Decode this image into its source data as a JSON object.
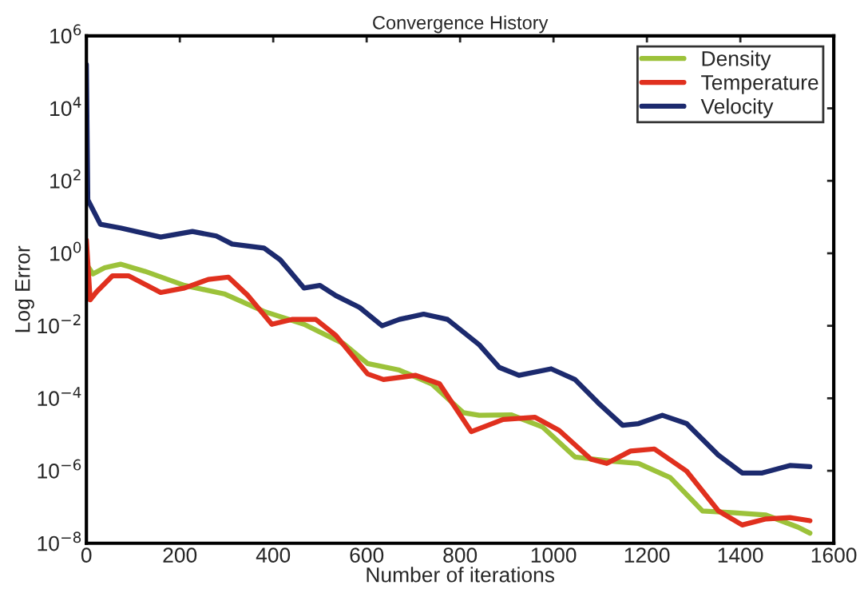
{
  "chart_data": {
    "type": "line",
    "title": "Convergence History",
    "xlabel": "Number of iterations",
    "ylabel": "Log Error",
    "xlim": [
      0,
      1600
    ],
    "xticks": [
      0,
      200,
      400,
      600,
      800,
      1000,
      1200,
      1400,
      1600
    ],
    "ylim": [
      1e-08,
      1000000.0
    ],
    "log": "y",
    "yticks": [
      {
        "value": 1e-08,
        "label": "10$^{−8}$"
      },
      {
        "value": 1e-06,
        "label": "10$^{−6}$"
      },
      {
        "value": 0.0001,
        "label": "10$^{−4}$"
      },
      {
        "value": 0.01,
        "label": "10$^{−2}$"
      },
      {
        "value": 1,
        "label": "10$^{0}$"
      },
      {
        "value": 100,
        "label": "10$^{2}$"
      },
      {
        "value": 10000,
        "label": "10$^{4}$"
      },
      {
        "value": 1000000,
        "label": "10$^{6}$"
      }
    ],
    "grid": false,
    "legend": "top right",
    "marker": "none",
    "line_style": "solid",
    "series": [
      {
        "name": "Density",
        "color": "#9cc23a",
        "x": [
          0,
          14,
          39,
          73,
          125,
          210,
          295,
          380,
          466,
          551,
          602,
          670,
          739,
          807,
          841,
          909,
          977,
          1046,
          1131,
          1182,
          1250,
          1319,
          1387,
          1455,
          1523,
          1549
        ],
        "values": [
          0.5,
          0.27,
          0.4,
          0.5,
          0.32,
          0.13,
          0.076,
          0.025,
          0.011,
          0.0032,
          0.00091,
          0.0006,
          0.00025,
          4e-05,
          3.4e-05,
          3.5e-05,
          1.6e-05,
          2.4e-06,
          1.8e-06,
          1.6e-06,
          6.5e-07,
          7.8e-08,
          6.9e-08,
          6e-08,
          2.8e-08,
          1.9e-08
        ]
      },
      {
        "name": "Temperature",
        "color": "#e0301e",
        "x": [
          0,
          8,
          22,
          56,
          90,
          159,
          210,
          261,
          304,
          346,
          397,
          440,
          491,
          534,
          602,
          636,
          705,
          756,
          824,
          892,
          960,
          1012,
          1080,
          1114,
          1165,
          1216,
          1285,
          1353,
          1404,
          1455,
          1506,
          1549
        ],
        "values": [
          2.3,
          0.052,
          0.087,
          0.24,
          0.24,
          0.083,
          0.11,
          0.19,
          0.22,
          0.068,
          0.011,
          0.015,
          0.015,
          0.0054,
          0.00047,
          0.00033,
          0.00043,
          0.00025,
          1.2e-05,
          2.6e-05,
          3e-05,
          1.3e-05,
          2.1e-06,
          1.6e-06,
          3.5e-06,
          4e-06,
          9.8e-07,
          7.8e-08,
          3.2e-08,
          4.7e-08,
          5.1e-08,
          4.2e-08
        ]
      },
      {
        "name": "Velocity",
        "color": "#1c2a6e",
        "x": [
          0,
          3,
          30,
          73,
          159,
          227,
          278,
          312,
          380,
          415,
          466,
          500,
          534,
          585,
          633,
          670,
          722,
          773,
          841,
          884,
          926,
          995,
          1046,
          1097,
          1148,
          1182,
          1233,
          1285,
          1353,
          1404,
          1447,
          1506,
          1549
        ],
        "values": [
          160000,
          30,
          6.3,
          5.0,
          2.8,
          4.0,
          3.0,
          1.8,
          1.4,
          0.66,
          0.11,
          0.13,
          0.068,
          0.032,
          0.01,
          0.015,
          0.021,
          0.015,
          0.003,
          0.00071,
          0.00043,
          0.00065,
          0.00033,
          7.2e-05,
          1.8e-05,
          2e-05,
          3.4e-05,
          2e-05,
          2.7e-06,
          8.7e-07,
          8.7e-07,
          1.4e-06,
          1.3e-06
        ]
      }
    ]
  }
}
